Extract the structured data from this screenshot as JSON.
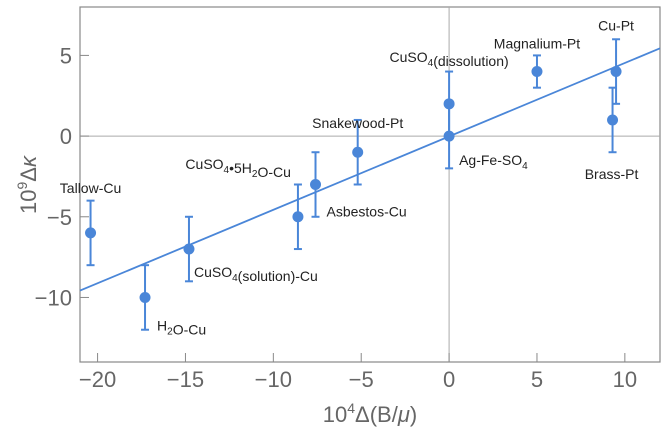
{
  "chart_data": {
    "type": "scatter",
    "title": "",
    "xlabel": {
      "prefix": "10",
      "sup": "4",
      "rest": "Δ(B/",
      "mu": "μ",
      "close": ")"
    },
    "ylabel": {
      "prefix": "10",
      "sup": "9",
      "delta": "Δ",
      "kappa": "κ"
    },
    "xlim": [
      -21,
      12
    ],
    "ylim": [
      -14,
      8
    ],
    "xticks": [
      {
        "v": -20,
        "label": "−20"
      },
      {
        "v": -15,
        "label": "−15"
      },
      {
        "v": -10,
        "label": "−10"
      },
      {
        "v": -5,
        "label": "−5"
      },
      {
        "v": 0,
        "label": "0"
      },
      {
        "v": 5,
        "label": "5"
      },
      {
        "v": 10,
        "label": "10"
      }
    ],
    "yticks": [
      {
        "v": -10,
        "label": "−10"
      },
      {
        "v": -5,
        "label": "−5"
      },
      {
        "v": 0,
        "label": "0"
      },
      {
        "v": 5,
        "label": "5"
      }
    ],
    "fit_line": {
      "slope": 0.455,
      "intercept": -0.02
    },
    "points": [
      {
        "x": -20.4,
        "y": -6,
        "err": 2,
        "label": {
          "main": "Tallow-Cu"
        },
        "ldx": 0,
        "ldy": -40,
        "anchor": "middle"
      },
      {
        "x": -17.3,
        "y": -10,
        "err": 2,
        "label": {
          "main": "H",
          "sub": "2",
          "rest": "O-Cu"
        },
        "ldx": 12,
        "ldy": 33,
        "anchor": "start"
      },
      {
        "x": -14.8,
        "y": -7,
        "err": 2,
        "label": {
          "main": "CuSO",
          "sub": "4",
          "rest": "(solution)-Cu"
        },
        "ldx": 5,
        "ldy": 28,
        "anchor": "start"
      },
      {
        "x": -8.6,
        "y": -5,
        "err": 2,
        "label": {
          "main": "CuSO",
          "sub": "4",
          "rest": "•5H",
          "sub2": "2",
          "rest2": "O-Cu"
        },
        "ldx": -7,
        "ldy": -48,
        "anchor": "end"
      },
      {
        "x": -7.6,
        "y": -3,
        "err": 2,
        "label": {
          "main": "Asbestos-Cu"
        },
        "ldx": 11,
        "ldy": 32,
        "anchor": "start"
      },
      {
        "x": -5.2,
        "y": -1,
        "err": 2,
        "label": {
          "main": "Snakewood-Pt"
        },
        "ldx": 0,
        "ldy": -24,
        "anchor": "middle"
      },
      {
        "x": 0,
        "y": 2,
        "err": 2,
        "label": {
          "main": "CuSO",
          "sub": "4",
          "rest": "(dissolution)"
        },
        "ldx": 0,
        "ldy": -42,
        "anchor": "middle"
      },
      {
        "x": 0,
        "y": 0,
        "err": 2,
        "label": {
          "main": "Ag-Fe-SO",
          "sub": "4"
        },
        "ldx": 10,
        "ldy": 29,
        "anchor": "start"
      },
      {
        "x": 5,
        "y": 4,
        "err": 1,
        "label": {
          "main": "Magnalium-Pt"
        },
        "ldx": 0,
        "ldy": -23,
        "anchor": "middle"
      },
      {
        "x": 9.5,
        "y": 4,
        "err": 2,
        "label": {
          "main": "Cu-Pt"
        },
        "ldx": 0,
        "ldy": -41,
        "anchor": "middle"
      },
      {
        "x": 9.3,
        "y": 1,
        "err": 2,
        "label": {
          "main": "Brass-Pt"
        },
        "ldx": -1,
        "ldy": 59,
        "anchor": "middle"
      }
    ]
  },
  "colors": {
    "series": "#4a86d8",
    "frame": "#888888",
    "text": "#666666"
  }
}
